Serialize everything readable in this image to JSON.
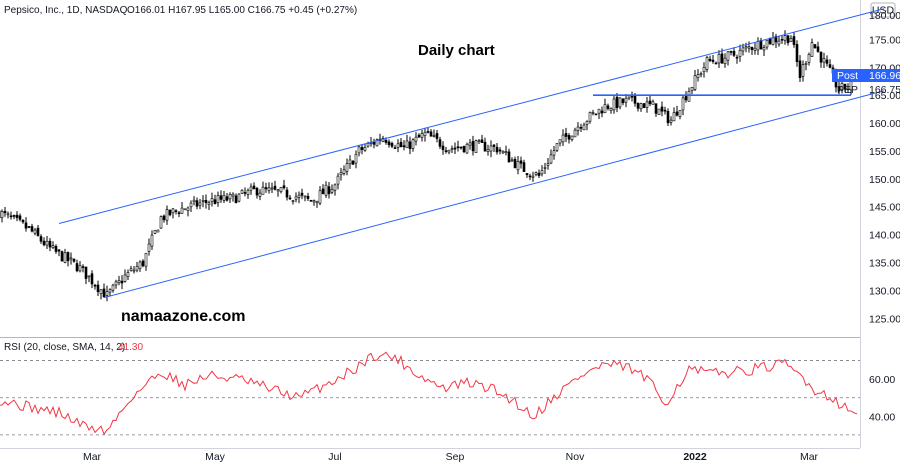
{
  "legend": {
    "main": "Pepsico, Inc., 1D, NASDAQ",
    "ohlc": "O166.01  H167.95  L165.00  C166.75  +0.45 (+0.27%)",
    "currency": "USD",
    "rsi_label": "RSI (20, close, SMA, 14, 2)",
    "rsi_value": "41.30"
  },
  "annotations": {
    "title": "Daily chart",
    "site": "namaazone.com"
  },
  "price_tags": {
    "post_label": "Post",
    "post_value": "166.96",
    "ticker": "PEP",
    "last_value": "166.75",
    "top_cut": "180.00"
  },
  "colors": {
    "up": "#000000",
    "down": "#000000",
    "channel": "#2962ff",
    "rsi_line": "#f23645",
    "post_tag": "#2962ff",
    "grid": "#e0e3eb"
  },
  "chart_data": [
    {
      "type": "candlestick",
      "title": "",
      "ylim": [
        122,
        181
      ],
      "y_ticks": [
        "125.00",
        "130.00",
        "135.00",
        "140.00",
        "145.00",
        "150.00",
        "155.00",
        "160.00",
        "165.00",
        "170.00",
        "175.00"
      ],
      "x_ticks": [
        "Mar",
        "May",
        "Jul",
        "Sep",
        "Nov",
        "2022",
        "Mar"
      ],
      "anchors": [
        {
          "d": 0,
          "v": 144
        },
        {
          "d": 10,
          "v": 141
        },
        {
          "d": 17,
          "v": 137.5
        },
        {
          "d": 27,
          "v": 134
        },
        {
          "d": 36,
          "v": 129
        },
        {
          "d": 42,
          "v": 132.5
        },
        {
          "d": 48,
          "v": 135
        },
        {
          "d": 54,
          "v": 143
        },
        {
          "d": 60,
          "v": 144.5
        },
        {
          "d": 70,
          "v": 146
        },
        {
          "d": 78,
          "v": 146.5
        },
        {
          "d": 86,
          "v": 148
        },
        {
          "d": 95,
          "v": 147.5
        },
        {
          "d": 104,
          "v": 146
        },
        {
          "d": 112,
          "v": 149
        },
        {
          "d": 120,
          "v": 155
        },
        {
          "d": 128,
          "v": 157.5
        },
        {
          "d": 135,
          "v": 155.5
        },
        {
          "d": 142,
          "v": 158
        },
        {
          "d": 150,
          "v": 155.5
        },
        {
          "d": 158,
          "v": 156
        },
        {
          "d": 166,
          "v": 155.5
        },
        {
          "d": 174,
          "v": 152
        },
        {
          "d": 180,
          "v": 150.5
        },
        {
          "d": 186,
          "v": 156
        },
        {
          "d": 194,
          "v": 160
        },
        {
          "d": 202,
          "v": 163
        },
        {
          "d": 210,
          "v": 164
        },
        {
          "d": 218,
          "v": 163
        },
        {
          "d": 224,
          "v": 160.5
        },
        {
          "d": 230,
          "v": 166
        },
        {
          "d": 236,
          "v": 171
        },
        {
          "d": 244,
          "v": 172
        },
        {
          "d": 252,
          "v": 174
        },
        {
          "d": 258,
          "v": 175
        },
        {
          "d": 264,
          "v": 175.5
        },
        {
          "d": 267,
          "v": 168.5
        },
        {
          "d": 271,
          "v": 174.5
        },
        {
          "d": 276,
          "v": 170
        },
        {
          "d": 280,
          "v": 166
        },
        {
          "d": 284,
          "v": 166.75
        }
      ],
      "channel": {
        "upper": [
          [
            20,
            142
          ],
          [
            295,
            180.5
          ]
        ],
        "lower": [
          [
            35,
            128.7
          ],
          [
            295,
            165.8
          ]
        ],
        "support": [
          [
            198,
            165
          ],
          [
            284,
            165
          ]
        ]
      }
    },
    {
      "type": "line",
      "title": "",
      "ylim": [
        24,
        80
      ],
      "y_ticks": [
        "40.00",
        "60.00"
      ],
      "bands": [
        30,
        50,
        70
      ],
      "anchors": [
        {
          "d": 0,
          "v": 49
        },
        {
          "d": 10,
          "v": 45
        },
        {
          "d": 20,
          "v": 42
        },
        {
          "d": 28,
          "v": 35
        },
        {
          "d": 36,
          "v": 32
        },
        {
          "d": 44,
          "v": 50
        },
        {
          "d": 54,
          "v": 64
        },
        {
          "d": 62,
          "v": 57
        },
        {
          "d": 70,
          "v": 62
        },
        {
          "d": 80,
          "v": 60
        },
        {
          "d": 90,
          "v": 55
        },
        {
          "d": 100,
          "v": 50
        },
        {
          "d": 110,
          "v": 58
        },
        {
          "d": 118,
          "v": 65
        },
        {
          "d": 125,
          "v": 73
        },
        {
          "d": 132,
          "v": 72
        },
        {
          "d": 140,
          "v": 62
        },
        {
          "d": 148,
          "v": 55
        },
        {
          "d": 156,
          "v": 58
        },
        {
          "d": 164,
          "v": 55
        },
        {
          "d": 172,
          "v": 48
        },
        {
          "d": 178,
          "v": 40
        },
        {
          "d": 186,
          "v": 52
        },
        {
          "d": 194,
          "v": 62
        },
        {
          "d": 202,
          "v": 68
        },
        {
          "d": 210,
          "v": 66
        },
        {
          "d": 216,
          "v": 60
        },
        {
          "d": 222,
          "v": 47
        },
        {
          "d": 230,
          "v": 65
        },
        {
          "d": 238,
          "v": 63
        },
        {
          "d": 246,
          "v": 64
        },
        {
          "d": 254,
          "v": 66
        },
        {
          "d": 262,
          "v": 68
        },
        {
          "d": 268,
          "v": 61
        },
        {
          "d": 272,
          "v": 54
        },
        {
          "d": 278,
          "v": 50
        },
        {
          "d": 283,
          "v": 43
        },
        {
          "d": 286,
          "v": 41.3
        }
      ]
    }
  ]
}
